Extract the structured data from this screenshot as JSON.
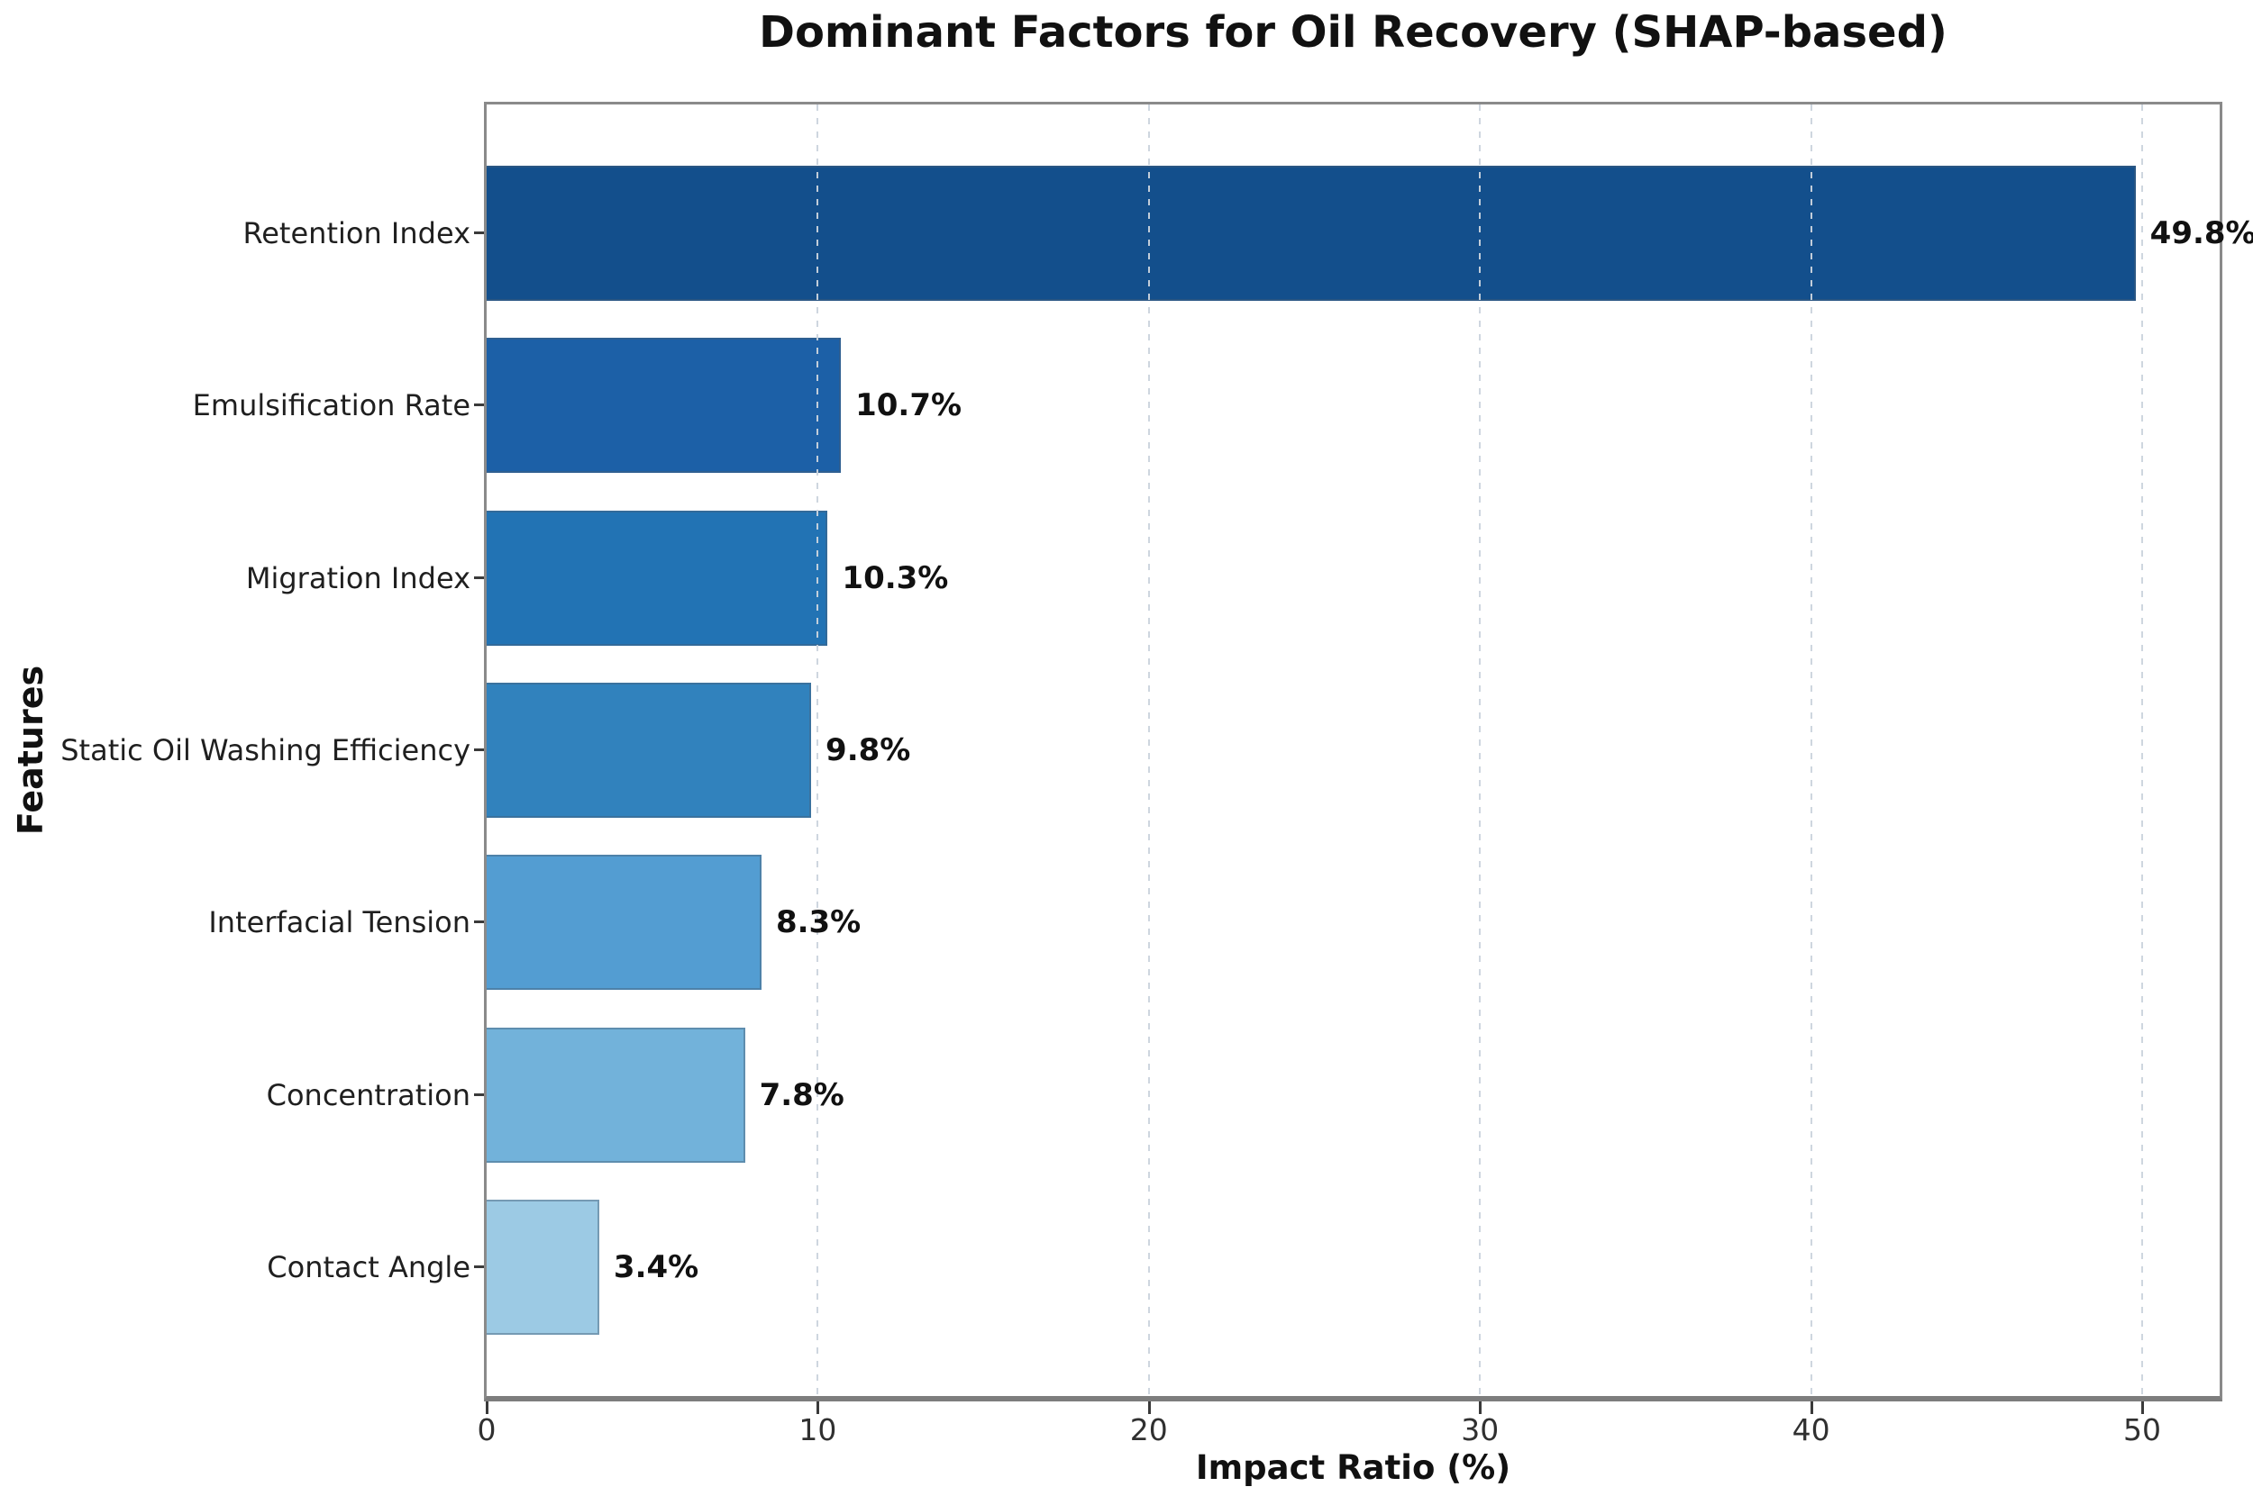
{
  "chart_data": {
    "type": "bar",
    "orientation": "horizontal",
    "title": "Dominant Factors for Oil Recovery (SHAP-based)",
    "xlabel": "Impact Ratio (%)",
    "ylabel": "Features",
    "categories": [
      "Retention Index",
      "Emulsification Rate",
      "Migration Index",
      "Static Oil Washing Efficiency",
      "Interfacial Tension",
      "Concentration",
      "Contact Angle"
    ],
    "values": [
      49.8,
      10.7,
      10.3,
      9.8,
      8.3,
      7.8,
      3.4
    ],
    "value_labels": [
      "49.8%",
      "10.7%",
      "10.3%",
      "9.8%",
      "8.3%",
      "7.8%",
      "3.4%"
    ],
    "bar_colors": [
      "#134f8c",
      "#1c60a7",
      "#2273b4",
      "#3182bd",
      "#539dd2",
      "#72b2da",
      "#9ccae4"
    ],
    "xticks": [
      0,
      10,
      20,
      30,
      40,
      50
    ],
    "xlim": [
      0,
      52.34
    ],
    "grid": "vertical-dashed",
    "legend": "none"
  }
}
